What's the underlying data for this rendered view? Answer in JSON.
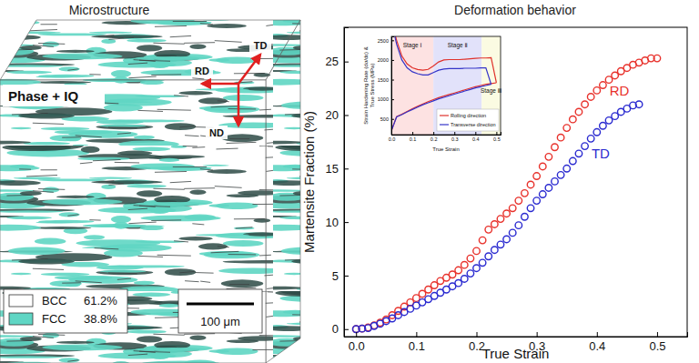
{
  "microstructure": {
    "title": "Microstructure",
    "map_label": "Phase + IQ",
    "directions": [
      "RD",
      "TD",
      "ND"
    ],
    "phases": [
      {
        "name": "BCC",
        "fraction": "61.2%",
        "color": "#ffffff"
      },
      {
        "name": "FCC",
        "fraction": "38.8%",
        "color": "#5fd6c4"
      }
    ],
    "scale_bar": "100 μm"
  },
  "chart_data": [
    {
      "type": "scatter",
      "title": "Deformation behavior",
      "x_label": "True Strain",
      "y_label": "Martensite Fraction (%)",
      "marker": "circle",
      "xlim": [
        -0.02,
        0.55
      ],
      "xticks": [
        {
          "value": 0,
          "label": "0.0"
        },
        0.1,
        0.2,
        0.3,
        0.4,
        0.5
      ],
      "ylim": [
        -0.7,
        28.2
      ],
      "yticks": [
        0,
        5,
        10,
        15,
        20,
        25
      ],
      "grid": false,
      "series": [
        {
          "name": "RD",
          "color": "#e8322c",
          "x": [
            0,
            0.01,
            0.02,
            0.03,
            0.04,
            0.05,
            0.06,
            0.07,
            0.08,
            0.09,
            0.1,
            0.11,
            0.12,
            0.13,
            0.14,
            0.15,
            0.16,
            0.17,
            0.18,
            0.19,
            0.2,
            0.21,
            0.22,
            0.23,
            0.24,
            0.25,
            0.26,
            0.27,
            0.28,
            0.29,
            0.3,
            0.31,
            0.32,
            0.33,
            0.34,
            0.35,
            0.36,
            0.37,
            0.38,
            0.39,
            0.4,
            0.41,
            0.42,
            0.43,
            0.44,
            0.45,
            0.46,
            0.47,
            0.48,
            0.49,
            0.5
          ],
          "values": [
            0,
            0.05,
            0.15,
            0.35,
            0.6,
            0.9,
            1.3,
            1.7,
            2.1,
            2.5,
            2.9,
            3.3,
            3.7,
            4.1,
            4.5,
            4.8,
            5.1,
            5.5,
            6.0,
            6.6,
            7.3,
            8.3,
            9.3,
            9.8,
            10.3,
            10.8,
            11.3,
            12.0,
            12.7,
            13.5,
            14.3,
            15.2,
            16.1,
            17.0,
            17.9,
            18.8,
            19.6,
            20.3,
            21.0,
            21.7,
            22.3,
            22.8,
            23.3,
            23.7,
            24.1,
            24.4,
            24.7,
            24.9,
            25.1,
            25.3,
            25.3
          ]
        },
        {
          "name": "TD",
          "color": "#2a2ad0",
          "x": [
            0,
            0.01,
            0.02,
            0.03,
            0.04,
            0.05,
            0.06,
            0.07,
            0.08,
            0.09,
            0.1,
            0.11,
            0.12,
            0.13,
            0.14,
            0.15,
            0.16,
            0.17,
            0.18,
            0.19,
            0.2,
            0.21,
            0.22,
            0.23,
            0.24,
            0.25,
            0.26,
            0.27,
            0.28,
            0.29,
            0.3,
            0.31,
            0.32,
            0.33,
            0.34,
            0.35,
            0.36,
            0.37,
            0.38,
            0.39,
            0.4,
            0.41,
            0.42,
            0.43,
            0.44,
            0.45,
            0.46,
            0.47
          ],
          "values": [
            0,
            0.05,
            0.1,
            0.3,
            0.5,
            0.75,
            1.0,
            1.3,
            1.6,
            1.9,
            2.2,
            2.5,
            2.8,
            3.1,
            3.4,
            3.7,
            4.0,
            4.3,
            4.7,
            5.2,
            5.7,
            6.2,
            6.8,
            7.4,
            7.9,
            8.4,
            9.0,
            9.7,
            10.5,
            11.3,
            12.0,
            12.6,
            13.2,
            13.8,
            14.4,
            15.0,
            15.7,
            16.4,
            17.1,
            17.8,
            18.4,
            19.0,
            19.5,
            19.9,
            20.3,
            20.6,
            20.9,
            21.0
          ]
        }
      ]
    },
    {
      "type": "line",
      "x_label": "True Strain",
      "y_label": [
        "Strain Hardening Rate (dσ/dε) &",
        "True Stress (MPa)"
      ],
      "xlim": [
        0,
        0.52
      ],
      "xticks": [
        {
          "value": 0,
          "label": "0.0"
        },
        0.1,
        0.2,
        0.3,
        0.4,
        0.5
      ],
      "ylim": [
        100,
        2600
      ],
      "yticks": [
        500,
        1000,
        1500,
        2000,
        2500
      ],
      "grid": false,
      "legend": "lower right",
      "stages": [
        {
          "label": "Stage Ⅰ",
          "start": 0,
          "end": 0.2,
          "color": "#fde2e2"
        },
        {
          "label": "Stage Ⅱ",
          "start": 0.2,
          "end": 0.43,
          "color": "#e2e2fa"
        },
        {
          "label": "Stage Ⅲ",
          "start": 0.43,
          "end": 0.52,
          "color": "#fbfbe2"
        }
      ],
      "series": [
        {
          "name": "Rolling direction",
          "color": "#e0302a",
          "x": [
            0,
            0.025,
            0.05,
            0.075,
            0.1,
            0.125,
            0.15,
            0.175,
            0.2,
            0.225,
            0.25,
            0.275,
            0.3,
            0.325,
            0.35,
            0.375,
            0.4,
            0.425,
            0.45,
            0.475,
            0.5
          ],
          "true_stress": [
            200,
            560,
            620,
            690,
            760,
            820,
            880,
            940,
            990,
            1040,
            1080,
            1120,
            1160,
            1200,
            1240,
            1280,
            1320,
            1350,
            1380,
            1400,
            1420
          ],
          "strain_hardening_rate": [
            3000,
            2500,
            2100,
            1900,
            1800,
            1760,
            1740,
            1760,
            1850,
            1950,
            2000,
            2010,
            2010,
            2010,
            2020,
            2030,
            2040,
            2050,
            2050,
            2060,
            1420
          ]
        },
        {
          "name": "Transverse direction",
          "color": "#3434c8",
          "x": [
            0,
            0.025,
            0.05,
            0.075,
            0.1,
            0.125,
            0.15,
            0.175,
            0.2,
            0.225,
            0.25,
            0.275,
            0.3,
            0.325,
            0.35,
            0.375,
            0.4,
            0.425,
            0.45,
            0.475,
            0.5
          ],
          "true_stress": [
            200,
            550,
            610,
            680,
            740,
            800,
            860,
            910,
            960,
            1010,
            1050,
            1090,
            1130,
            1170,
            1210,
            1250,
            1290,
            1320,
            1350,
            1380,
            null
          ],
          "strain_hardening_rate": [
            3000,
            2400,
            2000,
            1800,
            1700,
            1650,
            1620,
            1620,
            1680,
            1740,
            1770,
            1780,
            1780,
            1780,
            1790,
            1790,
            1790,
            1800,
            1800,
            1380,
            null
          ]
        }
      ]
    }
  ]
}
